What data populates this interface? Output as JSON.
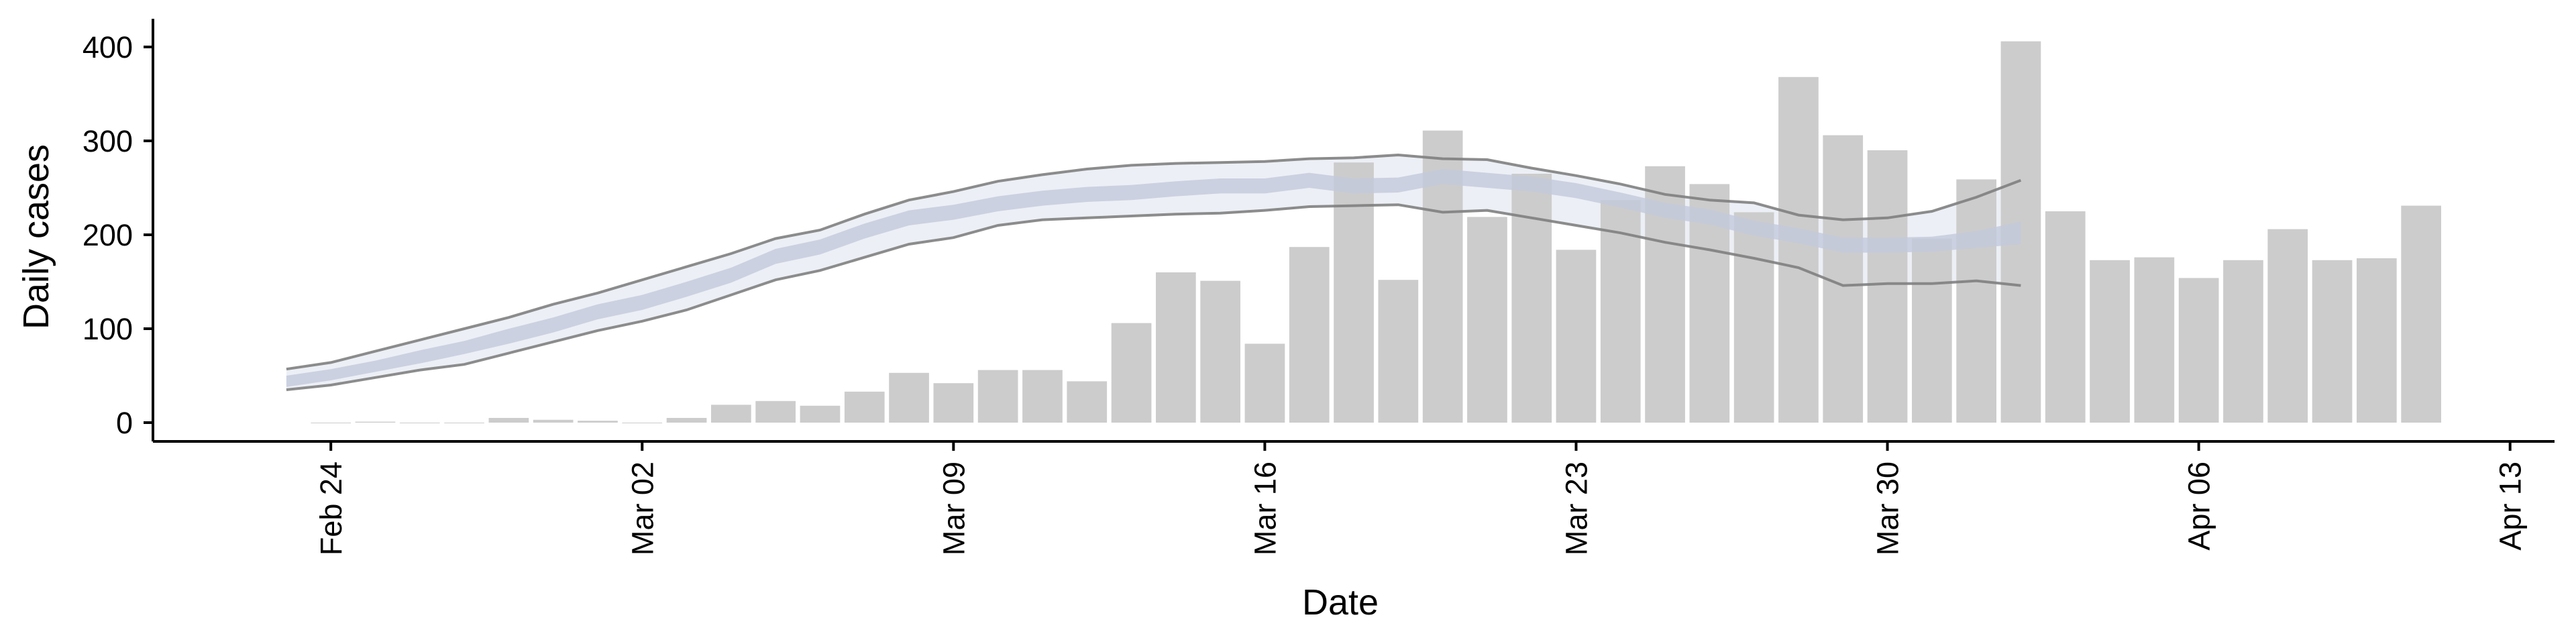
{
  "chart_data": {
    "type": "bar",
    "title": "",
    "xlabel": "Date",
    "ylabel": "Daily cases",
    "ylim": [
      -20,
      430
    ],
    "xlim": [
      "2020-02-20",
      "2020-04-14"
    ],
    "grid": false,
    "legend": "none",
    "x_ticks": [
      {
        "date": "2020-02-24",
        "label": "Feb 24"
      },
      {
        "date": "2020-03-02",
        "label": "Mar 02"
      },
      {
        "date": "2020-03-09",
        "label": "Mar 09"
      },
      {
        "date": "2020-03-16",
        "label": "Mar 16"
      },
      {
        "date": "2020-03-23",
        "label": "Mar 23"
      },
      {
        "date": "2020-03-30",
        "label": "Mar 30"
      },
      {
        "date": "2020-04-06",
        "label": "Apr 06"
      },
      {
        "date": "2020-04-13",
        "label": "Apr 13"
      }
    ],
    "y_ticks": [
      0,
      100,
      200,
      300,
      400
    ],
    "bars": {
      "dates": [
        "2020-02-24",
        "2020-02-25",
        "2020-02-26",
        "2020-02-27",
        "2020-02-28",
        "2020-02-29",
        "2020-03-01",
        "2020-03-02",
        "2020-03-03",
        "2020-03-04",
        "2020-03-05",
        "2020-03-06",
        "2020-03-07",
        "2020-03-08",
        "2020-03-09",
        "2020-03-10",
        "2020-03-11",
        "2020-03-12",
        "2020-03-13",
        "2020-03-14",
        "2020-03-15",
        "2020-03-16",
        "2020-03-17",
        "2020-03-18",
        "2020-03-19",
        "2020-03-20",
        "2020-03-21",
        "2020-03-22",
        "2020-03-23",
        "2020-03-24",
        "2020-03-25",
        "2020-03-26",
        "2020-03-27",
        "2020-03-28",
        "2020-03-29",
        "2020-03-30",
        "2020-03-31",
        "2020-04-01",
        "2020-04-02",
        "2020-04-03",
        "2020-04-04",
        "2020-04-05",
        "2020-04-06",
        "2020-04-07",
        "2020-04-08",
        "2020-04-09",
        "2020-04-10",
        "2020-04-11"
      ],
      "values": [
        0,
        1,
        0,
        0,
        5,
        3,
        2,
        0,
        5,
        19,
        23,
        18,
        33,
        53,
        42,
        56,
        56,
        44,
        106,
        160,
        151,
        84,
        187,
        277,
        152,
        311,
        219,
        265,
        184,
        237,
        273,
        254,
        224,
        368,
        306,
        290,
        196,
        259,
        406,
        225,
        173,
        176,
        154,
        173,
        206,
        173,
        175,
        231
      ],
      "color": "#cccccc"
    },
    "series": [
      {
        "type": "line",
        "dates": [
          "2020-02-23",
          "2020-02-24",
          "2020-02-25",
          "2020-02-26",
          "2020-02-27",
          "2020-02-28",
          "2020-02-29",
          "2020-03-01",
          "2020-03-02",
          "2020-03-03",
          "2020-03-04",
          "2020-03-05",
          "2020-03-06",
          "2020-03-07",
          "2020-03-08",
          "2020-03-09",
          "2020-03-10",
          "2020-03-11",
          "2020-03-12",
          "2020-03-13",
          "2020-03-14",
          "2020-03-15",
          "2020-03-16",
          "2020-03-17",
          "2020-03-18",
          "2020-03-19",
          "2020-03-20",
          "2020-03-21",
          "2020-03-22",
          "2020-03-23",
          "2020-03-24",
          "2020-03-25",
          "2020-03-26",
          "2020-03-27",
          "2020-03-28",
          "2020-03-29",
          "2020-03-30",
          "2020-03-31",
          "2020-04-01",
          "2020-04-02"
        ],
        "median": [
          44,
          51,
          60,
          70,
          80,
          92,
          104,
          118,
          128,
          142,
          157,
          177,
          187,
          204,
          218,
          224,
          233,
          239,
          243,
          245,
          249,
          252,
          252,
          258,
          252,
          253,
          262,
          258,
          254,
          247,
          237,
          226,
          219,
          207,
          199,
          189,
          189,
          190,
          195,
          202
        ],
        "inner_low": [
          38,
          45,
          54,
          63,
          73,
          84,
          96,
          110,
          120,
          134,
          149,
          169,
          179,
          196,
          210,
          216,
          225,
          231,
          235,
          237,
          241,
          244,
          244,
          250,
          244,
          245,
          254,
          250,
          246,
          239,
          229,
          218,
          211,
          199,
          191,
          181,
          181,
          182,
          186,
          190
        ],
        "inner_high": [
          50,
          57,
          66,
          77,
          87,
          100,
          112,
          126,
          136,
          150,
          165,
          185,
          195,
          212,
          226,
          232,
          241,
          247,
          251,
          253,
          257,
          260,
          260,
          266,
          260,
          261,
          270,
          266,
          262,
          255,
          245,
          234,
          227,
          215,
          207,
          197,
          197,
          198,
          204,
          214
        ],
        "band_low": [
          35,
          40,
          48,
          56,
          62,
          74,
          86,
          98,
          108,
          120,
          136,
          152,
          162,
          176,
          190,
          197,
          210,
          216,
          218,
          220,
          222,
          223,
          226,
          230,
          231,
          232,
          224,
          226,
          218,
          210,
          202,
          192,
          184,
          175,
          165,
          146,
          148,
          148,
          151,
          146
        ],
        "band_high": [
          57,
          64,
          76,
          88,
          100,
          112,
          126,
          138,
          152,
          166,
          180,
          196,
          205,
          222,
          237,
          246,
          257,
          264,
          270,
          274,
          276,
          277,
          278,
          281,
          282,
          285,
          281,
          280,
          271,
          263,
          254,
          243,
          237,
          234,
          221,
          216,
          218,
          225,
          240,
          258
        ],
        "median_color": "#c3c9dc",
        "band_color": "#e9ecf3",
        "edge_color": "#7f7f7f"
      }
    ]
  }
}
